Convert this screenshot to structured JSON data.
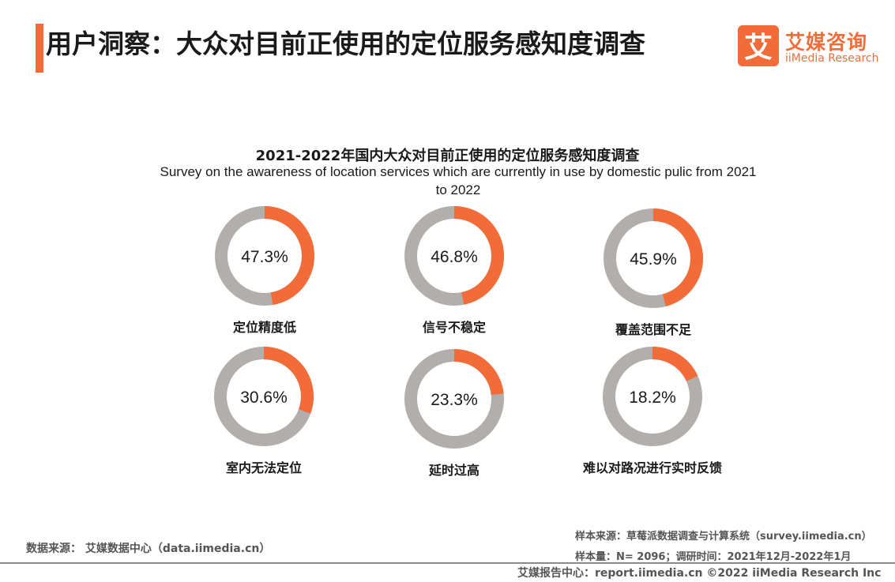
{
  "header": {
    "title": "用户洞察：大众对目前正使用的定位服务感知度调查"
  },
  "logo": {
    "mark": "艾",
    "cn": "艾媒咨询",
    "en": "iiMedia Research"
  },
  "colors": {
    "accent": "#f26c3a",
    "remainder": "#b1aeab"
  },
  "chart_data": {
    "type": "pie",
    "subtype": "donut-grid",
    "title": "2021-2022年国内大众对目前正使用的定位服务感知度调查",
    "subtitle": "Survey on the awareness of location services which are currently in use by domestic pulic from 2021 to 2022",
    "unit": "%",
    "categories": [
      "定位精度低",
      "信号不稳定",
      "覆盖范围不足",
      "室内无法定位",
      "延时过高",
      "难以对路况进行实时反馈"
    ],
    "values": [
      47.3,
      46.8,
      45.9,
      30.6,
      23.3,
      18.2
    ],
    "value_labels": [
      "47.3%",
      "46.8%",
      "45.9%",
      "30.6%",
      "23.3%",
      "18.2%"
    ]
  },
  "footer": {
    "source_left": "数据来源： 艾媒数据中心（data.iimedia.cn）",
    "sample_source": "样本来源：草莓派数据调查与计算系统（survey.iimedia.cn）",
    "sample_size": "样本量：N= 2096；调研时间：2021年12月-2022年1月",
    "report": "艾媒报告中心：report.iimedia.cn    ©2022  iiMedia Research  Inc"
  }
}
